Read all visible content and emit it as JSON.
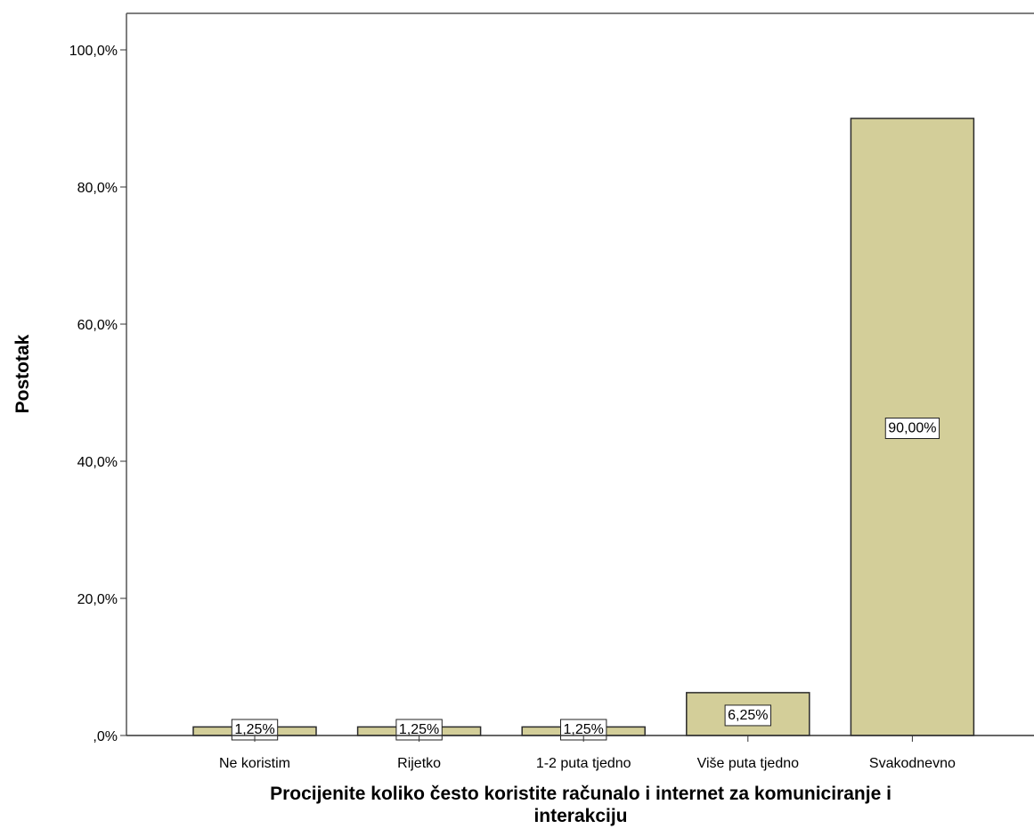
{
  "chart_data": {
    "type": "bar",
    "title": "",
    "categories": [
      "Ne koristim",
      "Rijetko",
      "1-2 puta tjedno",
      "Više puta tjedno",
      "Svakodnevno"
    ],
    "values": [
      1.25,
      1.25,
      1.25,
      6.25,
      90.0
    ],
    "data_labels": [
      "1,25%",
      "1,25%",
      "1,25%",
      "6,25%",
      "90,00%"
    ],
    "ylabel": "Postotak",
    "xlabel_lines": [
      "Procijenite koliko često koristite računalo i internet za komuniciranje i",
      "interakciju"
    ],
    "ylim": [
      0,
      100
    ],
    "y_ticks": [
      0,
      20,
      40,
      60,
      80,
      100
    ],
    "y_tick_labels": [
      ",0%",
      "20,0%",
      "40,0%",
      "60,0%",
      "80,0%",
      "100,0%"
    ],
    "grid": false,
    "legend": "none",
    "bar_color": "#d3ce99",
    "bar_stroke": "#2b2b2b"
  }
}
